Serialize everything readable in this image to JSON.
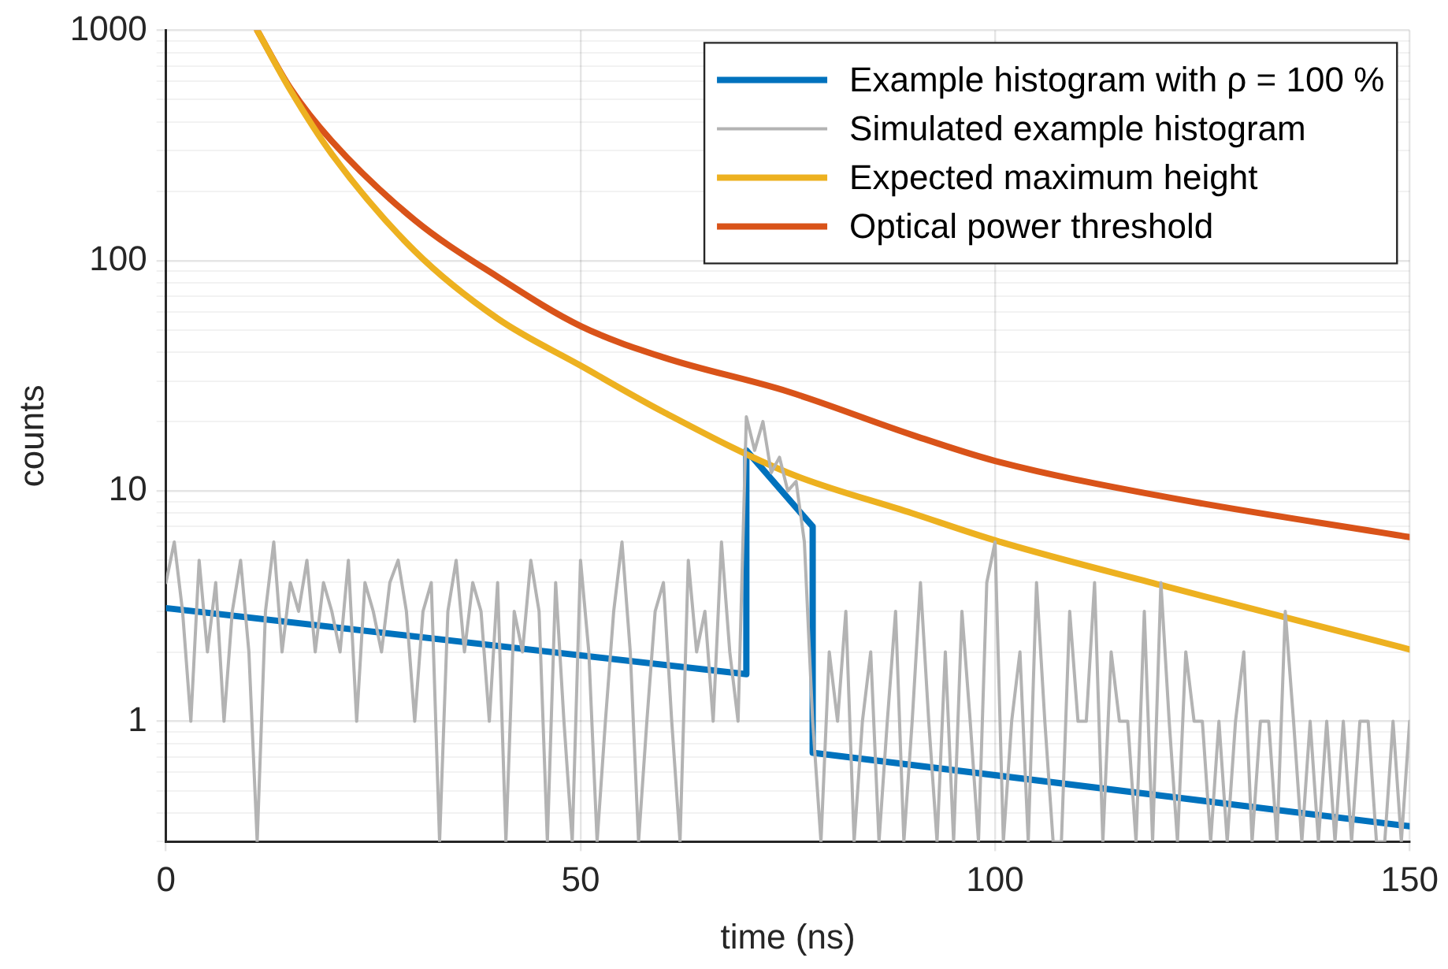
{
  "chart_data": {
    "type": "line",
    "xlabel": "time (ns)",
    "ylabel": "counts",
    "log": "y",
    "grid": true,
    "legend": "top right",
    "marker": "none",
    "line_style": "solid",
    "xlim": [
      0,
      150
    ],
    "xticks": [
      0,
      50,
      100,
      150
    ],
    "ylim": [
      0.3,
      1000
    ],
    "yticks": [
      {
        "value": 0.3,
        "label": null
      },
      {
        "value": 0.4,
        "label": null
      },
      {
        "value": 0.5,
        "label": null
      },
      {
        "value": 0.6,
        "label": null
      },
      {
        "value": 0.7,
        "label": null
      },
      {
        "value": 0.8,
        "label": null
      },
      {
        "value": 0.9,
        "label": null
      },
      1,
      {
        "value": 2,
        "label": null
      },
      {
        "value": 3,
        "label": null
      },
      {
        "value": 4,
        "label": null
      },
      {
        "value": 5,
        "label": null
      },
      {
        "value": 6,
        "label": null
      },
      {
        "value": 7,
        "label": null
      },
      {
        "value": 8,
        "label": null
      },
      {
        "value": 9,
        "label": null
      },
      10,
      {
        "value": 20,
        "label": null
      },
      {
        "value": 30,
        "label": null
      },
      {
        "value": 40,
        "label": null
      },
      {
        "value": 50,
        "label": null
      },
      {
        "value": 60,
        "label": null
      },
      {
        "value": 70,
        "label": null
      },
      {
        "value": 80,
        "label": null
      },
      {
        "value": 90,
        "label": null
      },
      100,
      {
        "value": 200,
        "label": null
      },
      {
        "value": 300,
        "label": null
      },
      {
        "value": 400,
        "label": null
      },
      {
        "value": 500,
        "label": null
      },
      {
        "value": 600,
        "label": null
      },
      {
        "value": 700,
        "label": null
      },
      {
        "value": 800,
        "label": null
      },
      {
        "value": 900,
        "label": null
      },
      1000
    ],
    "series": [
      {
        "name": "Simulated example histogram",
        "color": "#b3b3b3",
        "x": [
          0,
          1,
          2,
          3,
          4,
          5,
          6,
          7,
          8,
          9,
          10,
          11,
          12,
          13,
          14,
          15,
          16,
          17,
          18,
          19,
          20,
          21,
          22,
          23,
          24,
          25,
          26,
          27,
          28,
          29,
          30,
          31,
          32,
          33,
          34,
          35,
          36,
          37,
          38,
          39,
          40,
          41,
          42,
          43,
          44,
          45,
          46,
          47,
          48,
          49,
          50,
          51,
          52,
          53,
          54,
          55,
          56,
          57,
          58,
          59,
          60,
          61,
          62,
          63,
          64,
          65,
          66,
          67,
          68,
          69,
          70,
          71,
          72,
          73,
          74,
          75,
          76,
          77,
          78,
          79,
          80,
          81,
          82,
          83,
          84,
          85,
          86,
          87,
          88,
          89,
          90,
          91,
          92,
          93,
          94,
          95,
          96,
          97,
          98,
          99,
          100,
          101,
          102,
          103,
          104,
          105,
          106,
          107,
          108,
          109,
          110,
          111,
          112,
          113,
          114,
          115,
          116,
          117,
          118,
          119,
          120,
          121,
          122,
          123,
          124,
          125,
          126,
          127,
          128,
          129,
          130,
          131,
          132,
          133,
          134,
          135,
          136,
          137,
          138,
          139,
          140,
          141,
          142,
          143,
          144,
          145,
          146,
          147,
          148,
          149,
          150
        ],
        "values": [
          4,
          6,
          3,
          1,
          5,
          2,
          4,
          1,
          3,
          5,
          2,
          0.3,
          3,
          6,
          2,
          4,
          3,
          5,
          2,
          4,
          3,
          2,
          5,
          1,
          4,
          3,
          2,
          4,
          5,
          3,
          1,
          3,
          4,
          0.3,
          3,
          5,
          2,
          4,
          3,
          1,
          4,
          0.3,
          3,
          2,
          5,
          3,
          0.3,
          4,
          1,
          0.3,
          5,
          2,
          0.3,
          1,
          3,
          6,
          2,
          0.3,
          1,
          3,
          4,
          1,
          0.3,
          5,
          2,
          3,
          1,
          6,
          2,
          1,
          21,
          15,
          20,
          12,
          14,
          10,
          11,
          6,
          1,
          0.3,
          2,
          1,
          3,
          0.3,
          1,
          2,
          0.3,
          1,
          3,
          0.3,
          1,
          4,
          1,
          0.3,
          2,
          0.3,
          3,
          1,
          0.3,
          4,
          6,
          0.3,
          1,
          2,
          0.3,
          4,
          1,
          0.3,
          0.3,
          3,
          1,
          1,
          4,
          0.3,
          2,
          1,
          1,
          0.3,
          3,
          0.3,
          4,
          1,
          0.3,
          2,
          1,
          1,
          0.3,
          1,
          0.3,
          1,
          2,
          0.3,
          1,
          1,
          0.3,
          3,
          1,
          0.3,
          1,
          0.3,
          1,
          0.3,
          1,
          0.3,
          1,
          1,
          0.3,
          0.3,
          1,
          0.3,
          1
        ]
      },
      {
        "name": "Expected maximum height",
        "color": "#edb120",
        "x": [
          11,
          15,
          20,
          30,
          40,
          50,
          60,
          75,
          90,
          100,
          120,
          150
        ],
        "values": [
          1000,
          550,
          290,
          110,
          56,
          35,
          22,
          12,
          8,
          6.1,
          3.9,
          2.05
        ]
      },
      {
        "name": "Optical power threshold",
        "color": "#d95319",
        "x": [
          11,
          15,
          20,
          30,
          40,
          50,
          60,
          75,
          90,
          100,
          120,
          150
        ],
        "values": [
          1000,
          560,
          330,
          150,
          85,
          52,
          38,
          27,
          17.5,
          13.5,
          9.5,
          6.3
        ]
      },
      {
        "name": "Example histogram with ρ = 100 %",
        "color": "#0072bd",
        "x": [
          0,
          70,
          70,
          78,
          78,
          150
        ],
        "values": [
          3.1,
          1.6,
          15,
          7,
          0.73,
          0.35
        ]
      }
    ]
  }
}
